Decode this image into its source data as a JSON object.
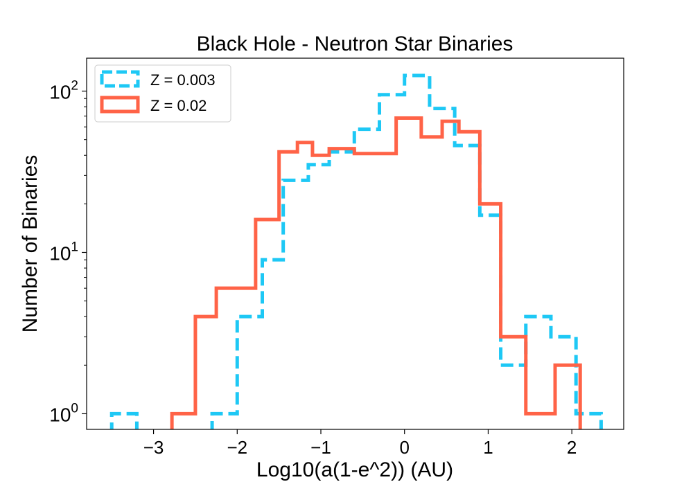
{
  "chart_data": {
    "type": "histogram-step",
    "title": "Black Hole - Neutron Star Binaries",
    "xlabel": "Log10(a(1-e^2)) (AU)",
    "ylabel": "Number of Binaries",
    "yscale": "log",
    "xlim": [
      -3.8,
      2.62
    ],
    "ylim": [
      0.8,
      160
    ],
    "x_ticks": [
      -3,
      -2,
      -1,
      0,
      1,
      2
    ],
    "x_tick_labels": [
      "−3",
      "−2",
      "−1",
      "0",
      "1",
      "2"
    ],
    "y_ticks": [
      1,
      10,
      100
    ],
    "y_tick_labels": [
      {
        "base": "10",
        "exp": "0"
      },
      {
        "base": "10",
        "exp": "1"
      },
      {
        "base": "10",
        "exp": "2"
      }
    ],
    "legend_position": "top-left",
    "series": [
      {
        "name": "Z = 0.003",
        "color": "#1ec8f5",
        "dash": true,
        "edges": [
          -3.5,
          -3.2,
          -2.3,
          -2.0,
          -1.7,
          -1.45,
          -1.15,
          -0.9,
          -0.6,
          -0.3,
          0.0,
          0.3,
          0.6,
          0.9,
          1.15,
          1.45,
          1.75,
          2.05,
          2.35
        ],
        "counts": [
          1,
          0,
          1,
          4,
          9,
          28,
          35,
          42,
          58,
          95,
          125,
          78,
          46,
          17,
          2,
          4,
          3,
          1
        ]
      },
      {
        "name": "Z = 0.02",
        "color": "#ff6347",
        "dash": false,
        "edges": [
          -2.78,
          -2.5,
          -2.25,
          -1.78,
          -1.5,
          -1.28,
          -1.1,
          -0.9,
          -0.6,
          -0.1,
          0.2,
          0.45,
          0.65,
          0.9,
          1.15,
          1.45,
          1.8,
          2.1
        ],
        "counts": [
          1,
          4,
          6,
          16,
          42,
          48,
          40,
          44,
          41,
          68,
          52,
          65,
          56,
          20,
          3,
          1,
          2
        ]
      }
    ]
  }
}
